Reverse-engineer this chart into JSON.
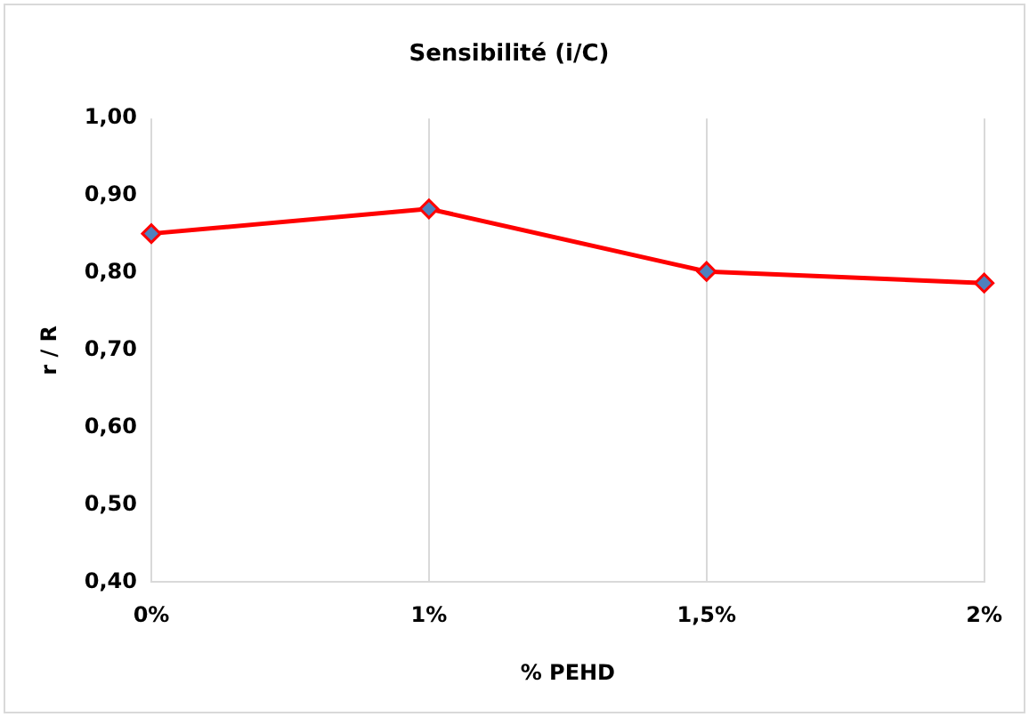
{
  "chart_data": {
    "type": "line",
    "title": "Sensibilité (i/C)",
    "xlabel": "% PEHD",
    "ylabel": "r / R",
    "categories": [
      "0%",
      "1%",
      "1,5%",
      "2%"
    ],
    "series": [
      {
        "color": "#ff0000",
        "values": [
          0.851,
          0.883,
          0.802,
          0.787
        ]
      }
    ],
    "ylim": [
      0.4,
      1.0
    ],
    "yticks": [
      {
        "value": 0.4,
        "label": "0,40"
      },
      {
        "value": 0.5,
        "label": "0,50"
      },
      {
        "value": 0.6,
        "label": "0,60"
      },
      {
        "value": 0.7,
        "label": "0,70"
      },
      {
        "value": 0.8,
        "label": "0,80"
      },
      {
        "value": 0.9,
        "label": "0,90"
      },
      {
        "value": 1.0,
        "label": "1,00"
      }
    ],
    "grid": "x",
    "legend": false,
    "marker": "diamond",
    "line_style": "solid"
  }
}
